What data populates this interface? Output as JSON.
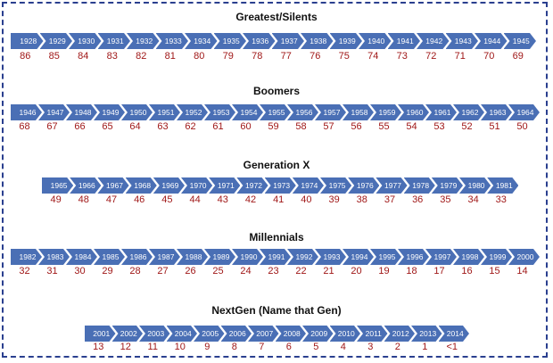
{
  "generations": [
    {
      "title": "Greatest/Silents",
      "years": [
        "1928",
        "1929",
        "1930",
        "1931",
        "1932",
        "1933",
        "1934",
        "1935",
        "1936",
        "1937",
        "1938",
        "1939",
        "1940",
        "1941",
        "1942",
        "1943",
        "1944",
        "1945"
      ],
      "ages": [
        "86",
        "85",
        "84",
        "83",
        "82",
        "81",
        "80",
        "79",
        "78",
        "77",
        "76",
        "75",
        "74",
        "73",
        "72",
        "71",
        "70",
        "69"
      ]
    },
    {
      "title": "Boomers",
      "years": [
        "1946",
        "1947",
        "1948",
        "1949",
        "1950",
        "1951",
        "1952",
        "1953",
        "1954",
        "1955",
        "1956",
        "1957",
        "1958",
        "1959",
        "1960",
        "1961",
        "1962",
        "1963",
        "1964"
      ],
      "ages": [
        "68",
        "67",
        "66",
        "65",
        "64",
        "63",
        "62",
        "61",
        "60",
        "59",
        "58",
        "57",
        "56",
        "55",
        "54",
        "53",
        "52",
        "51",
        "50"
      ]
    },
    {
      "title": "Generation X",
      "years": [
        "1965",
        "1966",
        "1967",
        "1968",
        "1969",
        "1970",
        "1971",
        "1972",
        "1973",
        "1974",
        "1975",
        "1976",
        "1977",
        "1978",
        "1979",
        "1980",
        "1981"
      ],
      "ages": [
        "49",
        "48",
        "47",
        "46",
        "45",
        "44",
        "43",
        "42",
        "41",
        "40",
        "39",
        "38",
        "37",
        "36",
        "35",
        "34",
        "33"
      ]
    },
    {
      "title": "Millennials",
      "years": [
        "1982",
        "1983",
        "1984",
        "1985",
        "1986",
        "1987",
        "1988",
        "1989",
        "1990",
        "1991",
        "1992",
        "1993",
        "1994",
        "1995",
        "1996",
        "1997",
        "1998",
        "1999",
        "2000"
      ],
      "ages": [
        "32",
        "31",
        "30",
        "29",
        "28",
        "27",
        "26",
        "25",
        "24",
        "23",
        "22",
        "21",
        "20",
        "19",
        "18",
        "17",
        "16",
        "15",
        "14"
      ]
    },
    {
      "title": "NextGen (Name that Gen)",
      "years": [
        "2001",
        "2002",
        "2003",
        "2004",
        "2005",
        "2006",
        "2007",
        "2008",
        "2009",
        "2010",
        "2011",
        "2012",
        "2013",
        "2014"
      ],
      "ages": [
        "13",
        "12",
        "11",
        "10",
        "9",
        "8",
        "7",
        "6",
        "5",
        "4",
        "3",
        "2",
        "1",
        "<1"
      ]
    }
  ],
  "colors": {
    "chevron": "#4a6fb5",
    "age_text": "#a01818",
    "border": "#2a3f8f"
  }
}
